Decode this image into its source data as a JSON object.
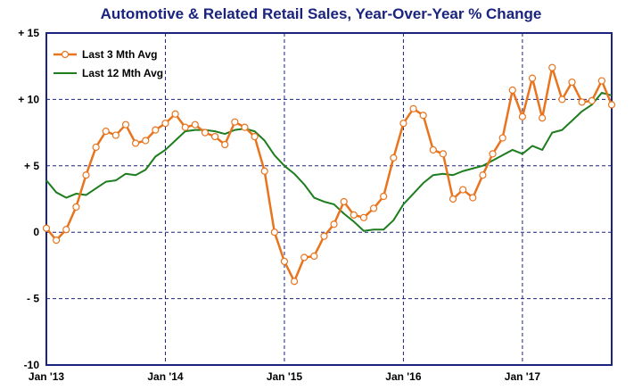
{
  "chart_data": {
    "type": "line",
    "title": "Automotive & Related Retail Sales, Year-Over-Year % Change",
    "ylim": [
      -10,
      15
    ],
    "y_ticks": [
      {
        "value": 15,
        "label": "+ 15"
      },
      {
        "value": 10,
        "label": "+ 10"
      },
      {
        "value": 5,
        "label": "+ 5"
      },
      {
        "value": 0,
        "label": "0"
      },
      {
        "value": -5,
        "label": "- 5"
      },
      {
        "value": -10,
        "label": "-10"
      }
    ],
    "x_ticks": [
      {
        "index": 0,
        "label": "Jan '13"
      },
      {
        "index": 12,
        "label": "Jan '14"
      },
      {
        "index": 24,
        "label": "Jan '15"
      },
      {
        "index": 36,
        "label": "Jan '16"
      },
      {
        "index": 48,
        "label": "Jan '17"
      }
    ],
    "grid": "dashed",
    "legend_position": "top-left",
    "colors": {
      "last3": "#e8741e",
      "last12": "#1e7d1e",
      "axis": "#1a237e",
      "grid": "#1a237e",
      "title": "#1a237e"
    },
    "series": [
      {
        "name": "Last 3 Mth Avg",
        "marker": "circle",
        "values": [
          0.3,
          -0.6,
          0.2,
          1.9,
          4.3,
          6.4,
          7.6,
          7.3,
          8.1,
          6.7,
          6.9,
          7.7,
          8.2,
          8.9,
          7.9,
          8.1,
          7.5,
          7.2,
          6.6,
          8.3,
          7.9,
          7.2,
          4.6,
          0.0,
          -2.2,
          -3.7,
          -1.9,
          -1.8,
          -0.3,
          0.6,
          2.3,
          1.3,
          1.1,
          1.8,
          2.7,
          5.6,
          8.2,
          9.3,
          8.8,
          6.2,
          5.9,
          2.5,
          3.2,
          2.6,
          4.3,
          5.9,
          7.1,
          10.7,
          8.7,
          11.6,
          8.6,
          12.4,
          10.0,
          11.3,
          9.8,
          9.9,
          11.4,
          9.6
        ]
      },
      {
        "name": "Last 12 Mth Avg",
        "marker": "none",
        "values": [
          3.9,
          3.0,
          2.6,
          2.9,
          2.8,
          3.3,
          3.8,
          3.9,
          4.4,
          4.3,
          4.7,
          5.7,
          6.2,
          6.9,
          7.6,
          7.7,
          7.7,
          7.6,
          7.4,
          7.7,
          7.8,
          7.6,
          6.9,
          5.8,
          5.0,
          4.4,
          3.6,
          2.6,
          2.3,
          2.1,
          1.4,
          0.8,
          0.1,
          0.2,
          0.2,
          0.9,
          2.1,
          2.9,
          3.7,
          4.3,
          4.4,
          4.3,
          4.6,
          4.8,
          5.0,
          5.4,
          5.8,
          6.2,
          5.9,
          6.5,
          6.2,
          7.5,
          7.7,
          8.4,
          9.1,
          9.6,
          10.5,
          10.3
        ]
      }
    ]
  }
}
